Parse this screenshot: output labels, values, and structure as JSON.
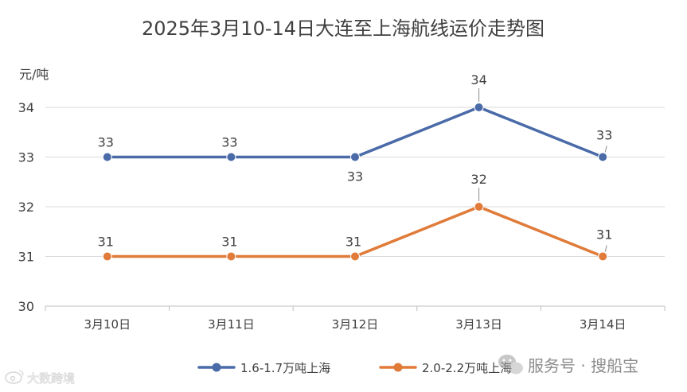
{
  "chart_data": {
    "type": "line",
    "title": "2025年3月10-14日大连至上海航线运价走势图",
    "ylabel": "元/吨",
    "xlabel": "",
    "categories": [
      "3月10日",
      "3月11日",
      "3月12日",
      "3月13日",
      "3月14日"
    ],
    "ylim": [
      30,
      34
    ],
    "yticks": [
      30,
      31,
      32,
      33,
      34
    ],
    "grid": true,
    "legend_position": "bottom",
    "series": [
      {
        "name": "1.6-1.7万吨上海",
        "color": "#4A6BA8",
        "values": [
          33,
          33,
          33,
          34,
          33
        ]
      },
      {
        "name": "2.0-2.2万吨上海",
        "color": "#E07B39",
        "values": [
          31,
          31,
          31,
          32,
          31
        ]
      }
    ]
  },
  "watermarks": {
    "right": "服务号 · 搜船宝",
    "left": "大数跨境",
    "wechat_icon": "wechat-icon",
    "left_logo_icon": "weibo-icon"
  }
}
